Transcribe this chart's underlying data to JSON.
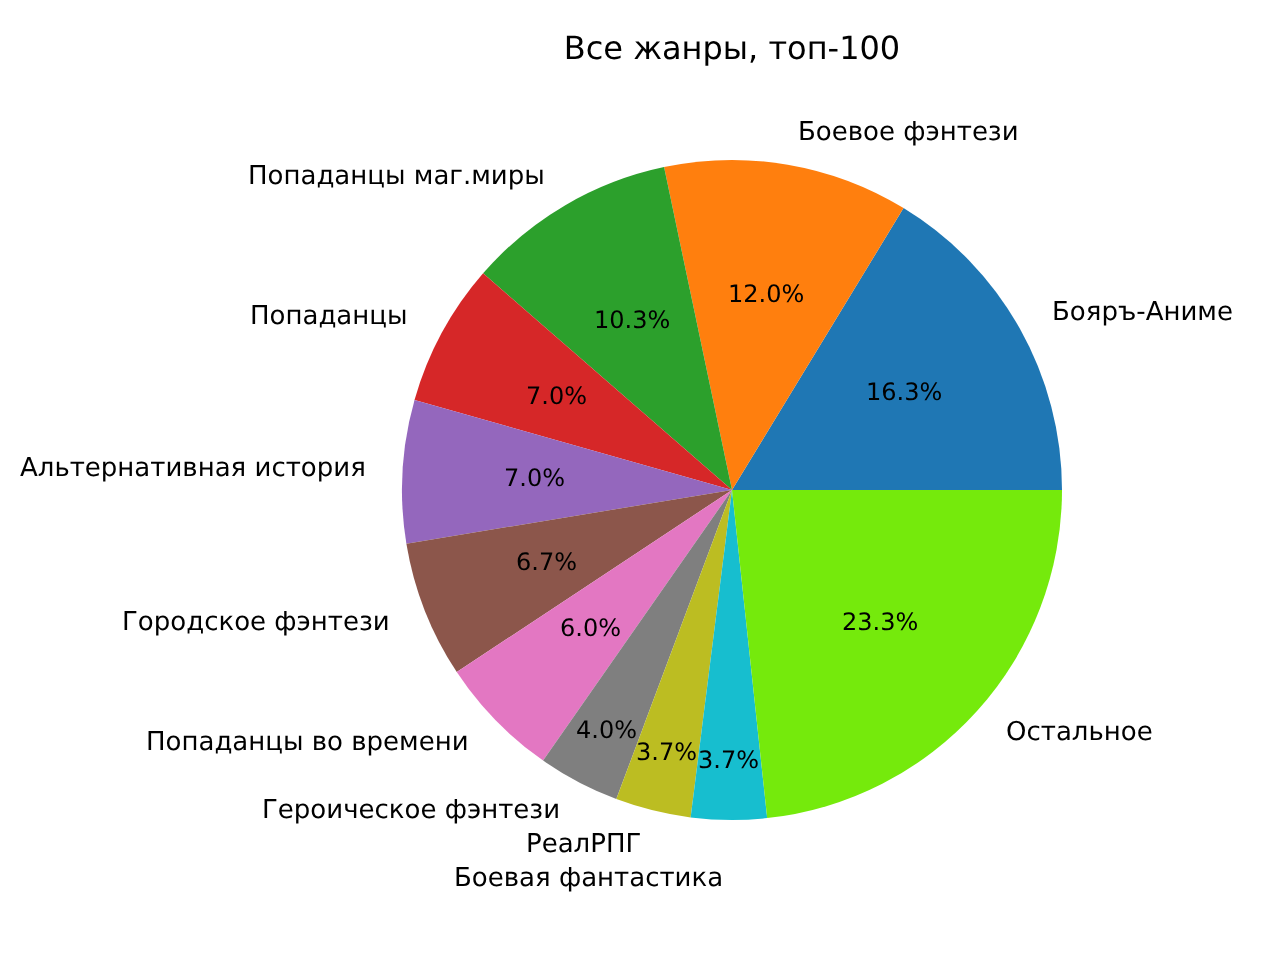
{
  "chart_data": {
    "type": "pie",
    "title": "Все жанры, топ-100",
    "categories": [
      "Бояръ-Аниме",
      "Боевое фэнтези",
      "Попаданцы маг.миры",
      "Попаданцы",
      "Альтернативная история",
      "Городское фэнтези",
      "Попаданцы во времени",
      "Героическое фэнтези",
      "РеалРПГ",
      "Боевая фантастика",
      "Остальное"
    ],
    "values": [
      16.3,
      12.0,
      10.3,
      7.0,
      7.0,
      6.7,
      6.0,
      4.0,
      3.7,
      3.7,
      23.3
    ],
    "value_labels": [
      "16.3%",
      "12.0%",
      "10.3%",
      "7.0%",
      "7.0%",
      "6.7%",
      "6.0%",
      "4.0%",
      "3.7%",
      "3.7%",
      "23.3%"
    ],
    "colors": [
      "#1f77b4",
      "#ff7f0e",
      "#2ca02c",
      "#d62728",
      "#9467bd",
      "#8c564b",
      "#e377c2",
      "#7f7f7f",
      "#bcbd22",
      "#17becf",
      "#75ea0c"
    ]
  }
}
